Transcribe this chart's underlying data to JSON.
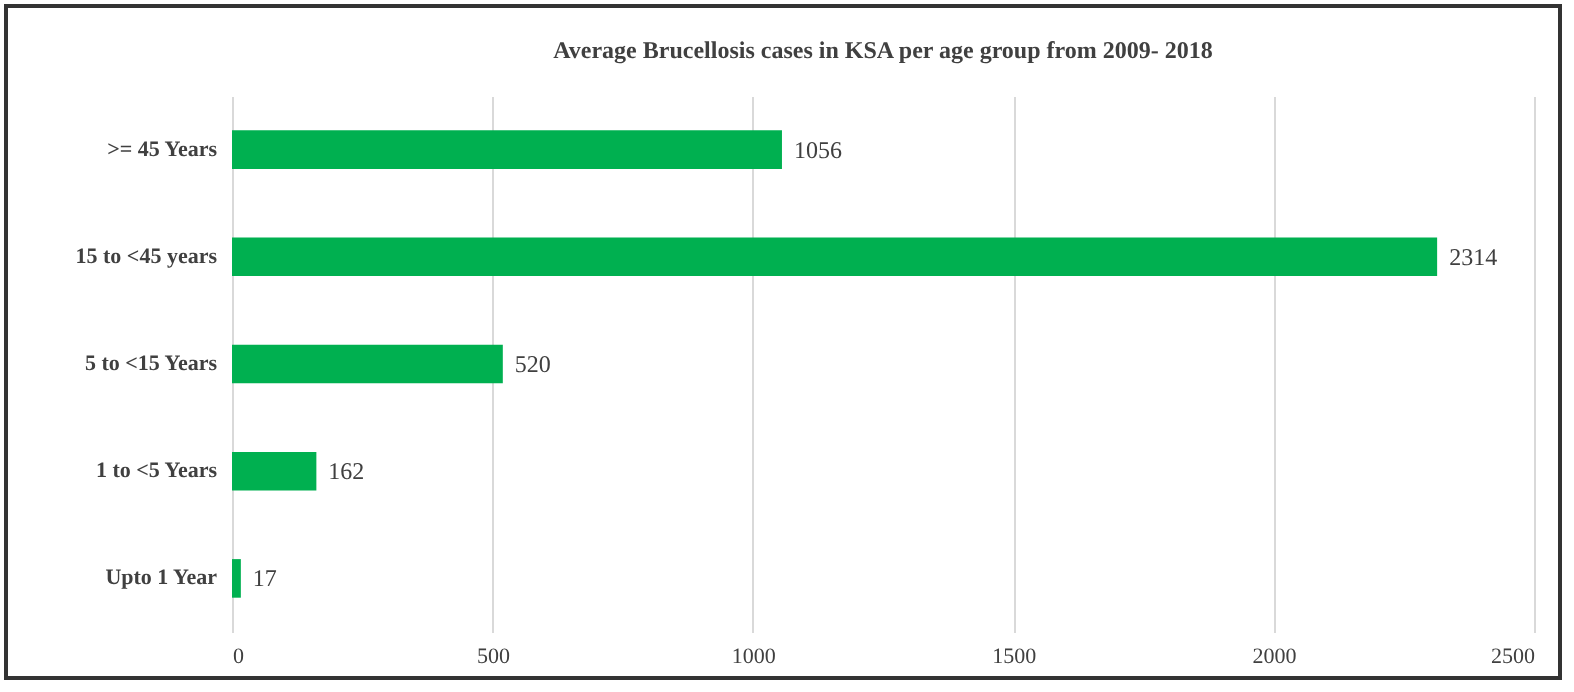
{
  "chart_data": {
    "type": "bar",
    "orientation": "horizontal",
    "title": "Average Brucellosis cases in KSA per age group from 2009- 2018",
    "categories": [
      ">= 45 Years",
      "15 to <45 years",
      "5 to <15 Years",
      "1 to <5 Years",
      "Upto 1 Year"
    ],
    "values": [
      1056,
      2314,
      520,
      162,
      17
    ],
    "color": "#00b050",
    "xlim": [
      0,
      2500
    ],
    "xticks": [
      0,
      500,
      1000,
      1500,
      2000,
      2500
    ],
    "grid": "x",
    "data_labels": true
  }
}
